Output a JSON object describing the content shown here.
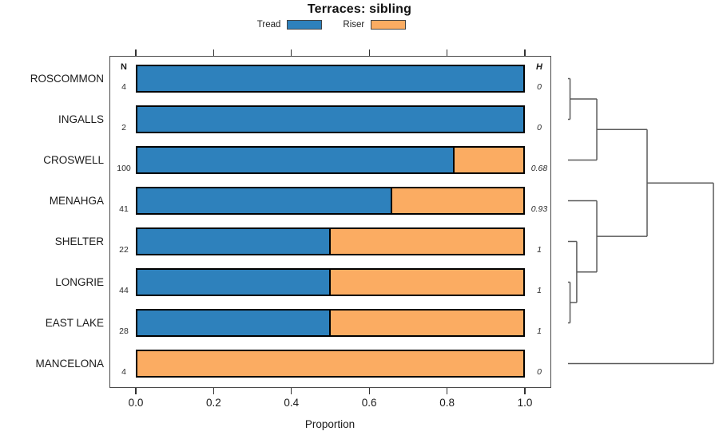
{
  "chart_data": {
    "type": "bar",
    "variant": "horizontal-stacked-with-dendrogram",
    "title": "Terraces: sibling",
    "xlabel": "Proportion",
    "xlim": [
      0,
      1
    ],
    "x_ticks": [
      "0.0",
      "0.2",
      "0.4",
      "0.6",
      "0.8",
      "1.0"
    ],
    "x_tick_values": [
      0,
      0.2,
      0.4,
      0.6,
      0.8,
      1.0
    ],
    "categories": [
      "ROSCOMMON",
      "INGALLS",
      "CROSWELL",
      "MENAHGA",
      "SHELTER",
      "LONGRIE",
      "EAST LAKE",
      "MANCELONA"
    ],
    "n_header": "N",
    "h_header": "H",
    "n_values": [
      "4",
      "2",
      "100",
      "41",
      "22",
      "44",
      "28",
      "4"
    ],
    "h_values": [
      "0",
      "0",
      "0.68",
      "0.93",
      "1",
      "1",
      "1",
      "0"
    ],
    "legend_position": "top",
    "grid": false,
    "series": [
      {
        "name": "Tread",
        "color": "#2E81BC",
        "values": [
          1,
          1,
          0.82,
          0.66,
          0.5,
          0.5,
          0.5,
          0
        ]
      },
      {
        "name": "Riser",
        "color": "#FBAC62",
        "values": [
          0,
          0,
          0.18,
          0.34,
          0.5,
          0.5,
          0.5,
          1
        ]
      }
    ],
    "dendrogram": {
      "leaves": [
        "ROSCOMMON",
        "INGALLS",
        "CROSWELL",
        "MENAHGA",
        "SHELTER",
        "LONGRIE",
        "EAST LAKE",
        "MANCELONA"
      ],
      "merges": [
        {
          "a": "L0",
          "b": "L1",
          "height": 0.014
        },
        {
          "a": "M0",
          "b": "L2",
          "height": 0.198
        },
        {
          "a": "L5",
          "b": "L6",
          "height": 0.014
        },
        {
          "a": "L4",
          "b": "M2",
          "height": 0.06
        },
        {
          "a": "L3",
          "b": "M3",
          "height": 0.198
        },
        {
          "a": "M1",
          "b": "M4",
          "height": 0.544
        },
        {
          "a": "M5",
          "b": "L7",
          "height": 1.0
        }
      ],
      "line_color": "#5a5a5a"
    }
  }
}
